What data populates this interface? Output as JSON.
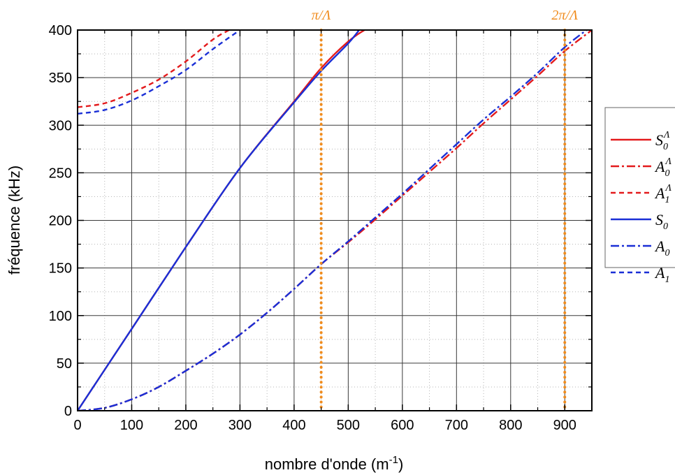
{
  "chart_data": {
    "type": "line",
    "title": "",
    "xlabel": "nombre d'onde (m",
    "xlabel_sup": "-1",
    "xlabel_close": ")",
    "ylabel": "fréquence (kHz)",
    "xlim": [
      0,
      950
    ],
    "ylim": [
      0,
      400
    ],
    "xticks": [
      0,
      100,
      200,
      300,
      400,
      500,
      600,
      700,
      800,
      900
    ],
    "yticks": [
      0,
      50,
      100,
      150,
      200,
      250,
      300,
      350,
      400
    ],
    "grid": true,
    "legend_position": "right",
    "vertical_markers": [
      {
        "x": 450,
        "label": "π/Λ"
      },
      {
        "x": 900,
        "label": "2π/Λ"
      }
    ],
    "series": [
      {
        "key": "s0_lambda",
        "name": "S",
        "sub": "0",
        "sup": "Λ",
        "color": "#e31a1c",
        "dash": "solid",
        "x": [
          0,
          100,
          200,
          300,
          400,
          450,
          500,
          530
        ],
        "y": [
          0,
          86,
          172,
          255,
          325,
          360,
          388,
          400
        ]
      },
      {
        "key": "a0_lambda",
        "name": "A",
        "sub": "0",
        "sup": "Λ",
        "color": "#e31a1c",
        "dash": "dashdot",
        "x": [
          0,
          50,
          100,
          150,
          200,
          250,
          300,
          350,
          400,
          450,
          500,
          550,
          600,
          650,
          700,
          750,
          800,
          850,
          900,
          950
        ],
        "y": [
          0,
          3,
          12,
          25,
          42,
          60,
          80,
          103,
          128,
          154,
          177,
          201,
          226,
          251,
          276,
          302,
          327,
          352,
          378,
          400
        ]
      },
      {
        "key": "a1_lambda",
        "name": "A",
        "sub": "1",
        "sup": "Λ",
        "color": "#e31a1c",
        "dash": "dashed",
        "x": [
          0,
          50,
          100,
          150,
          200,
          250,
          280
        ],
        "y": [
          319,
          323,
          334,
          348,
          367,
          390,
          400
        ]
      },
      {
        "key": "s0",
        "name": "S",
        "sub": "0",
        "sup": "",
        "color": "#1a2fd6",
        "dash": "solid",
        "x": [
          0,
          100,
          200,
          300,
          400,
          450,
          500,
          520
        ],
        "y": [
          0,
          86,
          172,
          255,
          324,
          357,
          386,
          400
        ]
      },
      {
        "key": "a0",
        "name": "A",
        "sub": "0",
        "sup": "",
        "color": "#1a2fd6",
        "dash": "dashdot",
        "x": [
          0,
          50,
          100,
          150,
          200,
          250,
          300,
          350,
          400,
          450,
          500,
          550,
          600,
          650,
          700,
          750,
          800,
          850,
          900,
          940
        ],
        "y": [
          0,
          3,
          12,
          25,
          42,
          60,
          80,
          103,
          128,
          154,
          178,
          203,
          228,
          254,
          280,
          306,
          330,
          355,
          382,
          400
        ]
      },
      {
        "key": "a1",
        "name": "A",
        "sub": "1",
        "sup": "",
        "color": "#1a2fd6",
        "dash": "dashed",
        "x": [
          0,
          50,
          100,
          150,
          200,
          250,
          300
        ],
        "y": [
          312,
          316,
          326,
          341,
          358,
          380,
          400
        ]
      }
    ]
  }
}
